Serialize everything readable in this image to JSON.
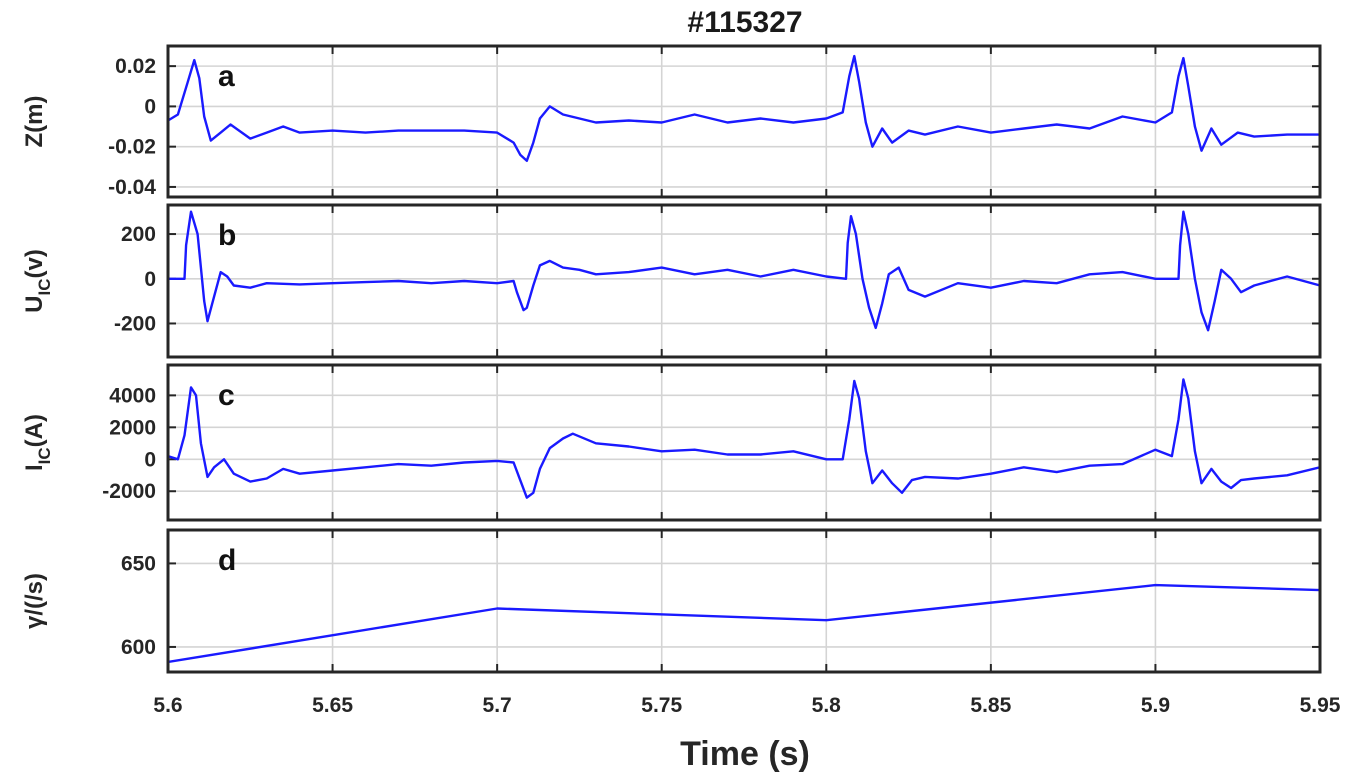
{
  "chart_data": {
    "type": "line",
    "title": "#115327",
    "xlabel": "Time (s)",
    "xlim": [
      5.6,
      5.95
    ],
    "xticks": [
      5.6,
      5.65,
      5.7,
      5.75,
      5.8,
      5.85,
      5.9,
      5.95
    ],
    "xtick_labels": [
      "5.6",
      "5.65",
      "5.7",
      "5.75",
      "5.8",
      "5.85",
      "5.9",
      "5.95"
    ],
    "grid": true,
    "line_color": "#1a1aff",
    "panels": [
      {
        "label": "a",
        "ylabel": "Z(m)",
        "ylim": [
          -0.045,
          0.03
        ],
        "yticks": [
          -0.04,
          -0.02,
          0,
          0.02
        ],
        "ytick_labels": [
          "-0.04",
          "-0.02",
          "0",
          "0.02"
        ],
        "series": [
          {
            "x": [
              5.6,
              5.603,
              5.606,
              5.608,
              5.6095,
              5.611,
              5.613,
              5.616,
              5.619,
              5.625,
              5.63,
              5.635,
              5.64,
              5.65,
              5.66,
              5.67,
              5.68,
              5.69,
              5.7,
              5.705,
              5.707,
              5.709,
              5.711,
              5.713,
              5.716,
              5.72,
              5.73,
              5.74,
              5.75,
              5.76,
              5.77,
              5.78,
              5.79,
              5.8,
              5.805,
              5.807,
              5.8085,
              5.81,
              5.812,
              5.814,
              5.817,
              5.82,
              5.825,
              5.83,
              5.84,
              5.85,
              5.86,
              5.87,
              5.88,
              5.89,
              5.9,
              5.905,
              5.907,
              5.9085,
              5.91,
              5.912,
              5.914,
              5.917,
              5.92,
              5.925,
              5.93,
              5.94,
              5.95
            ],
            "y": [
              -0.007,
              -0.004,
              0.012,
              0.023,
              0.014,
              -0.005,
              -0.017,
              -0.013,
              -0.009,
              -0.016,
              -0.013,
              -0.01,
              -0.013,
              -0.012,
              -0.013,
              -0.012,
              -0.012,
              -0.012,
              -0.013,
              -0.018,
              -0.024,
              -0.027,
              -0.018,
              -0.006,
              0.0,
              -0.004,
              -0.008,
              -0.007,
              -0.008,
              -0.004,
              -0.008,
              -0.006,
              -0.008,
              -0.006,
              -0.003,
              0.015,
              0.025,
              0.012,
              -0.008,
              -0.02,
              -0.011,
              -0.018,
              -0.012,
              -0.014,
              -0.01,
              -0.013,
              -0.011,
              -0.009,
              -0.011,
              -0.005,
              -0.008,
              -0.003,
              0.015,
              0.024,
              0.01,
              -0.01,
              -0.022,
              -0.011,
              -0.019,
              -0.013,
              -0.015,
              -0.014,
              -0.014
            ]
          }
        ]
      },
      {
        "label": "b",
        "ylabel": "U_IC(v)",
        "ylim": [
          -350,
          330
        ],
        "yticks": [
          -200,
          0,
          200
        ],
        "ytick_labels": [
          "-200",
          "0",
          "200"
        ],
        "series": [
          {
            "x": [
              5.6,
              5.605,
              5.6055,
              5.607,
              5.609,
              5.611,
              5.612,
              5.614,
              5.616,
              5.618,
              5.62,
              5.625,
              5.63,
              5.64,
              5.65,
              5.66,
              5.67,
              5.68,
              5.69,
              5.7,
              5.705,
              5.706,
              5.708,
              5.709,
              5.711,
              5.713,
              5.716,
              5.72,
              5.725,
              5.73,
              5.74,
              5.75,
              5.76,
              5.77,
              5.78,
              5.79,
              5.8,
              5.806,
              5.8065,
              5.8075,
              5.809,
              5.811,
              5.813,
              5.815,
              5.817,
              5.819,
              5.822,
              5.825,
              5.83,
              5.84,
              5.85,
              5.86,
              5.87,
              5.88,
              5.89,
              5.9,
              5.907,
              5.9075,
              5.9085,
              5.91,
              5.912,
              5.914,
              5.916,
              5.918,
              5.92,
              5.923,
              5.926,
              5.93,
              5.94,
              5.95
            ],
            "y": [
              0,
              0,
              150,
              300,
              200,
              -100,
              -190,
              -80,
              30,
              10,
              -30,
              -40,
              -20,
              -25,
              -20,
              -15,
              -10,
              -20,
              -10,
              -20,
              -10,
              -60,
              -140,
              -130,
              -30,
              60,
              80,
              50,
              40,
              20,
              30,
              50,
              20,
              40,
              10,
              40,
              10,
              0,
              160,
              280,
              200,
              0,
              -130,
              -220,
              -110,
              20,
              50,
              -50,
              -80,
              -20,
              -40,
              -10,
              -20,
              20,
              30,
              0,
              0,
              150,
              300,
              200,
              0,
              -150,
              -230,
              -100,
              40,
              0,
              -60,
              -30,
              10,
              -30
            ]
          }
        ]
      },
      {
        "label": "c",
        "ylabel": "I_IC(A)",
        "ylim": [
          -3800,
          5900
        ],
        "yticks": [
          -2000,
          0,
          2000,
          4000
        ],
        "ytick_labels": [
          "-2000",
          "0",
          "2000",
          "4000"
        ],
        "series": [
          {
            "x": [
              5.6,
              5.603,
              5.605,
              5.607,
              5.6085,
              5.61,
              5.612,
              5.614,
              5.617,
              5.62,
              5.625,
              5.63,
              5.635,
              5.64,
              5.65,
              5.66,
              5.67,
              5.68,
              5.69,
              5.7,
              5.705,
              5.707,
              5.709,
              5.711,
              5.713,
              5.716,
              5.72,
              5.723,
              5.73,
              5.74,
              5.75,
              5.76,
              5.77,
              5.78,
              5.79,
              5.8,
              5.805,
              5.807,
              5.8085,
              5.81,
              5.812,
              5.814,
              5.817,
              5.82,
              5.823,
              5.826,
              5.83,
              5.84,
              5.85,
              5.86,
              5.87,
              5.88,
              5.89,
              5.9,
              5.905,
              5.907,
              5.9085,
              5.91,
              5.912,
              5.914,
              5.917,
              5.92,
              5.923,
              5.926,
              5.93,
              5.94,
              5.95
            ],
            "y": [
              200,
              0,
              1500,
              4500,
              4000,
              1000,
              -1100,
              -500,
              0,
              -900,
              -1400,
              -1200,
              -600,
              -900,
              -700,
              -500,
              -300,
              -400,
              -200,
              -100,
              -200,
              -1300,
              -2400,
              -2100,
              -600,
              700,
              1300,
              1600,
              1000,
              800,
              500,
              600,
              300,
              300,
              500,
              0,
              0,
              2500,
              4900,
              3800,
              500,
              -1500,
              -700,
              -1500,
              -2100,
              -1300,
              -1100,
              -1200,
              -900,
              -500,
              -800,
              -400,
              -300,
              600,
              200,
              2500,
              5000,
              3800,
              500,
              -1500,
              -600,
              -1400,
              -1800,
              -1300,
              -1200,
              -1000,
              -500
            ]
          }
        ]
      },
      {
        "label": "d",
        "ylabel": "γ/(/s)",
        "ylim": [
          585,
          670
        ],
        "yticks": [
          600,
          650
        ],
        "ytick_labels": [
          "600",
          "650"
        ],
        "series": [
          {
            "x": [
              5.6,
              5.7,
              5.8,
              5.9,
              5.95
            ],
            "y": [
              591,
              623,
              616,
              637,
              634
            ]
          }
        ]
      }
    ]
  }
}
